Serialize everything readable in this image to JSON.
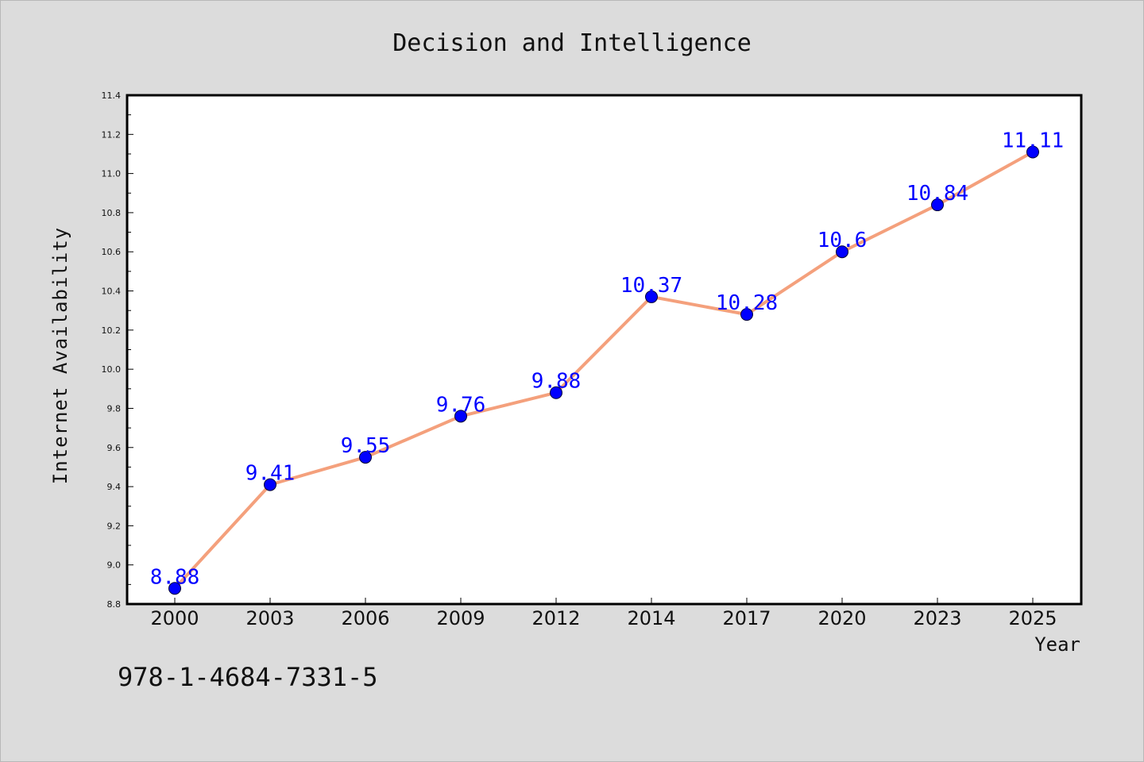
{
  "colors": {
    "background": "#dcdcdc",
    "plot_background": "#ffffff",
    "line": "#f4a07c",
    "marker": "#0000ff",
    "data_label": "#0000ff",
    "axis": "#000000"
  },
  "footer": {
    "isbn": "978-1-4684-7331-5"
  },
  "chart_data": {
    "type": "line",
    "title": "Decision and Intelligence",
    "xlabel": "Year",
    "ylabel": "Internet Availability",
    "categories": [
      "2000",
      "2003",
      "2006",
      "2009",
      "2012",
      "2014",
      "2017",
      "2020",
      "2023",
      "2025"
    ],
    "series": [
      {
        "values": [
          8.88,
          9.41,
          9.55,
          9.76,
          9.88,
          10.37,
          10.28,
          10.6,
          10.84,
          11.11
        ],
        "labels": [
          "8.88",
          "9.41",
          "9.55",
          "9.76",
          "9.88",
          "10.37",
          "10.28",
          "10.6",
          "10.84",
          "11.11"
        ]
      }
    ],
    "ylim": [
      8.8,
      11.4
    ],
    "yticks": [
      "8.8",
      "9.0",
      "9.2",
      "9.4",
      "9.6",
      "9.8",
      "10.0",
      "10.2",
      "10.4",
      "10.6",
      "10.8",
      "11.0",
      "11.2",
      "11.4"
    ],
    "ytick_values": [
      8.8,
      9.0,
      9.2,
      9.4,
      9.6,
      9.8,
      10.0,
      10.2,
      10.4,
      10.6,
      10.8,
      11.0,
      11.2,
      11.4
    ],
    "grid": false,
    "legend": "none",
    "data_labels": true
  }
}
